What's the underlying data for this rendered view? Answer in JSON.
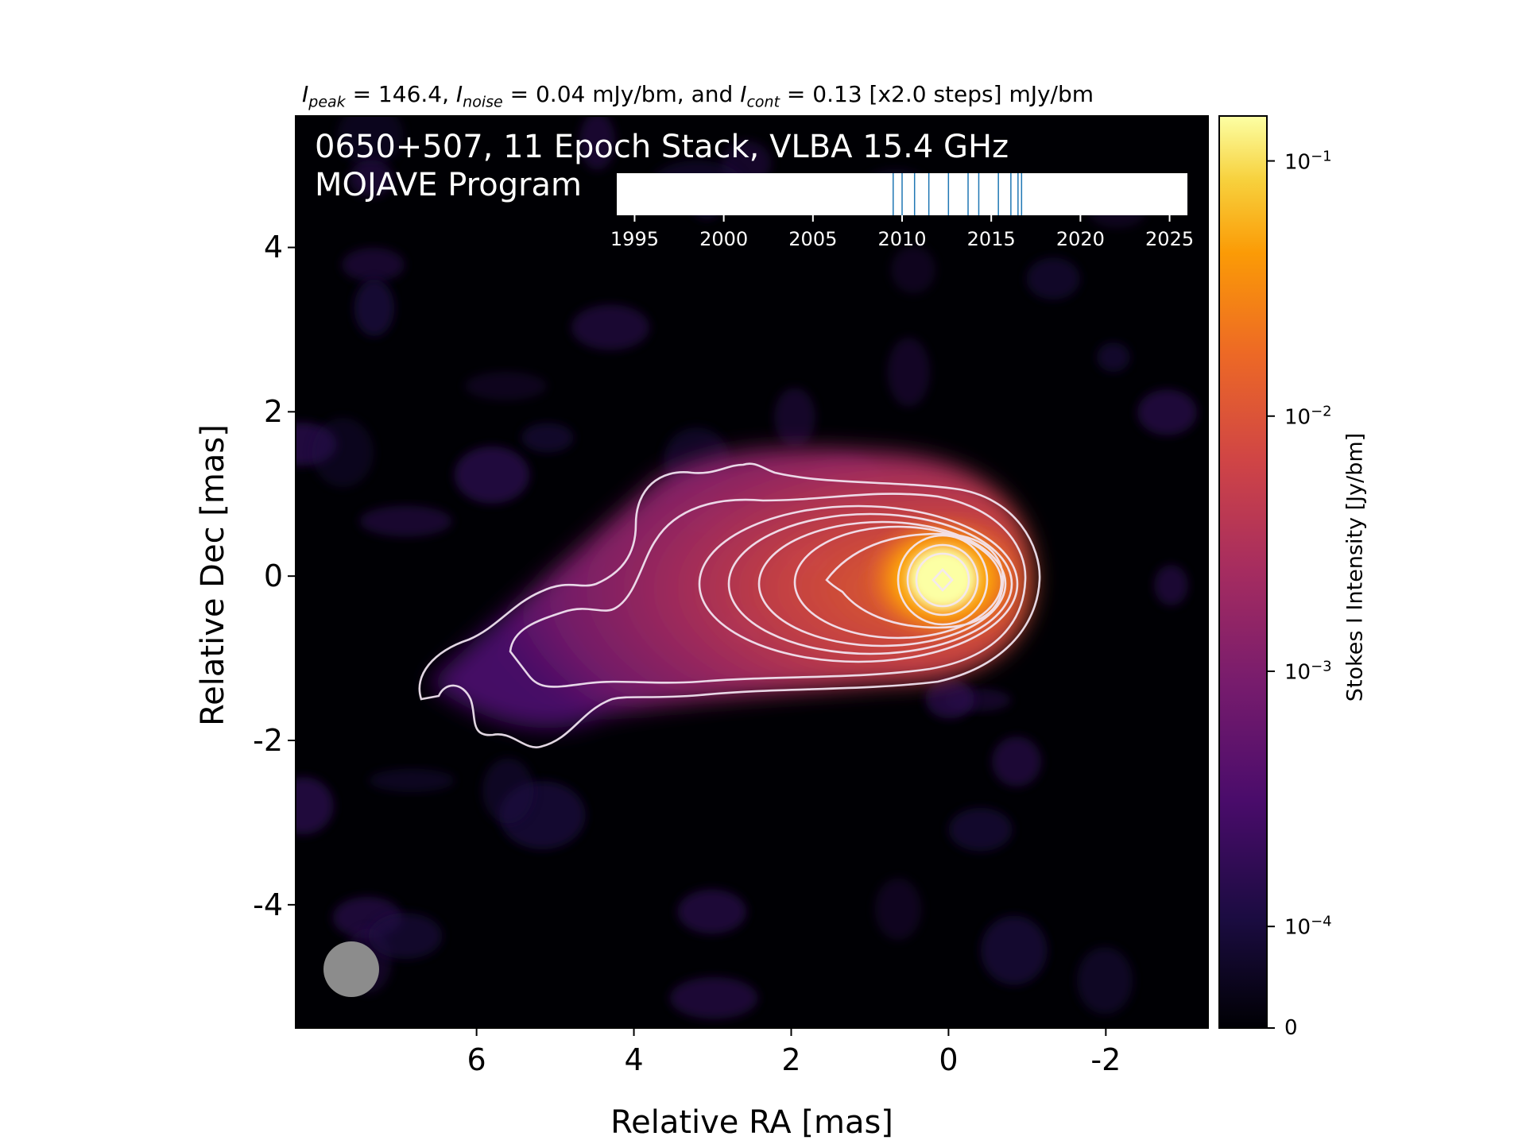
{
  "header": {
    "peak_symbol": "I",
    "peak_sub": "peak",
    "peak_text": " = 146.4, ",
    "noise_symbol": "I",
    "noise_sub": "noise",
    "noise_text": " = 0.04 mJy/bm, and ",
    "cont_symbol": "I",
    "cont_sub": "cont",
    "cont_text": " = 0.13 [x2.0 steps] mJy/bm"
  },
  "plot": {
    "title_line1": "0650+507, 11 Epoch Stack, VLBA 15.4 GHz",
    "title_line2": "MOJAVE Program",
    "beam_color": "#8c8c8c"
  },
  "colorbar": {
    "label": "Stokes I Intensity [Jy/bm]",
    "colormap": "inferno",
    "ticks": [
      {
        "base": "10",
        "exp": "−1",
        "value": 0.1
      },
      {
        "base": "10",
        "exp": "−2",
        "value": 0.01
      },
      {
        "base": "10",
        "exp": "−3",
        "value": 0.001
      },
      {
        "base": "10",
        "exp": "−4",
        "value": 0.0001
      },
      {
        "base": "0",
        "exp": "",
        "value": 0
      }
    ]
  },
  "chart_data": {
    "type": "heatmap",
    "title": "0650+507, 11 Epoch Stack, VLBA 15.4 GHz",
    "subtitle": "MOJAVE Program",
    "xlabel": "Relative RA [mas]",
    "ylabel": "Relative Dec [mas]",
    "xlim": [
      8.3,
      -3.3
    ],
    "ylim": [
      -5.5,
      5.6
    ],
    "xticks": [
      6,
      4,
      2,
      0,
      -2
    ],
    "yticks": [
      4,
      2,
      0,
      -2,
      -4
    ],
    "xtick_labels": [
      "6",
      "4",
      "2",
      "0",
      "-2"
    ],
    "ytick_labels": [
      "4",
      "2",
      "0",
      "-2",
      "-4"
    ],
    "peak_position": [
      0,
      0
    ],
    "peak_intensity_mJy_per_bm": 146.4,
    "noise_mJy_per_bm": 0.04,
    "lowest_contour_mJy_per_bm": 0.13,
    "contour_step_factor": 2.0,
    "contour_levels_mJy_per_bm": [
      0.13,
      0.26,
      0.52,
      1.04,
      2.08,
      4.16,
      8.32,
      16.64,
      33.28,
      66.56,
      133.12
    ],
    "epoch_timeline": {
      "xlim": [
        1994,
        2026
      ],
      "ticks": [
        1995,
        2000,
        2005,
        2010,
        2015,
        2020,
        2025
      ],
      "epochs": [
        2009.5,
        2010.0,
        2010.7,
        2011.5,
        2012.6,
        2013.7,
        2014.3,
        2015.4,
        2016.1,
        2016.5,
        2016.7
      ]
    }
  }
}
